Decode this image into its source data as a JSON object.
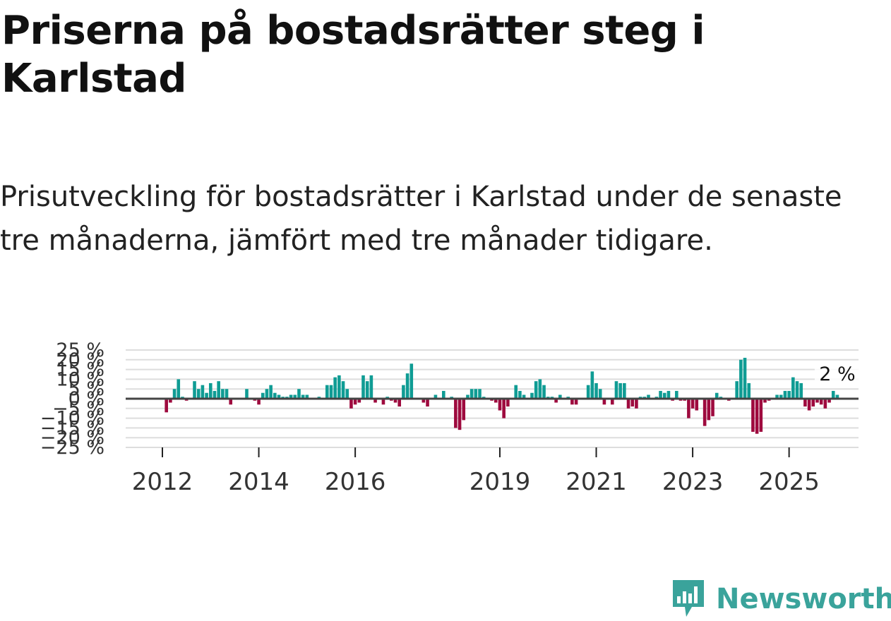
{
  "title": "Priserna på bostadsrätter steg i Karlstad",
  "subtitle": "Prisutveckling för bostadsrätter i Karlstad under de senaste tre månaderna, jämfört med tre månader tidigare.",
  "brand": {
    "name": "Newsworthy",
    "color": "#3aa39b"
  },
  "colors": {
    "positive": "#0f9c94",
    "negative": "#9e0a3e",
    "zero_line": "#444444",
    "grid": "#dddddd"
  },
  "chart_data": {
    "type": "bar",
    "title": "Priserna på bostadsrätter steg i Karlstad",
    "xlabel": "",
    "ylabel": "",
    "ylim": [
      -25,
      25
    ],
    "grid": true,
    "y_ticks": [
      25,
      20,
      15,
      10,
      5,
      0,
      -5,
      -10,
      -15,
      -20,
      -25
    ],
    "y_tick_labels": [
      "25 %",
      "20 %",
      "15 %",
      "10 %",
      "5 %",
      "0 %",
      "−5 %",
      "−10 %",
      "−15 %",
      "−20 %",
      "−25 %"
    ],
    "x_ticks": [
      {
        "label": "2012",
        "index": 6
      },
      {
        "label": "2014",
        "index": 30
      },
      {
        "label": "2016",
        "index": 54
      },
      {
        "label": "2019",
        "index": 90
      },
      {
        "label": "2021",
        "index": 114
      },
      {
        "label": "2023",
        "index": 138
      },
      {
        "label": "2025",
        "index": 162
      }
    ],
    "start": "2011-06",
    "last_label": "2 %",
    "values": [
      0,
      0,
      0,
      0,
      0,
      0,
      0,
      -7,
      -2,
      5,
      10,
      1,
      -1,
      0,
      9,
      5,
      7,
      3,
      8,
      4,
      9,
      5,
      5,
      -3,
      0,
      0,
      0,
      5,
      0,
      -1,
      -3,
      3,
      5,
      7,
      3,
      2,
      1,
      1,
      2,
      2,
      5,
      2,
      2,
      0,
      0,
      1,
      0,
      7,
      7,
      11,
      12,
      9,
      5,
      -5,
      -3,
      -2,
      12,
      9,
      12,
      -2,
      0,
      -3,
      1,
      -1,
      -2,
      -4,
      7,
      13,
      18,
      0,
      0,
      -2,
      -4,
      0,
      2,
      0,
      4,
      0,
      1,
      -15,
      -16,
      -11,
      2,
      5,
      5,
      5,
      1,
      0,
      -1,
      -2,
      -6,
      -10,
      -4,
      0,
      7,
      4,
      2,
      0,
      3,
      9,
      10,
      7,
      1,
      1,
      -2,
      2,
      0,
      1,
      -3,
      -3,
      0,
      0,
      7,
      14,
      8,
      5,
      -3,
      0,
      -3,
      9,
      8,
      8,
      -5,
      -4,
      -5,
      1,
      1,
      2,
      0,
      1,
      4,
      3,
      4,
      -1,
      4,
      -1,
      -1,
      -10,
      -5,
      -6,
      0,
      -14,
      -11,
      -9,
      3,
      1,
      0,
      -1,
      0,
      9,
      20,
      21,
      8,
      -17,
      -18,
      -17,
      -2,
      -1,
      0,
      2,
      2,
      4,
      4,
      11,
      9,
      8,
      -4,
      -6,
      -4,
      -2,
      -3,
      -5,
      -2,
      4,
      2
    ]
  }
}
